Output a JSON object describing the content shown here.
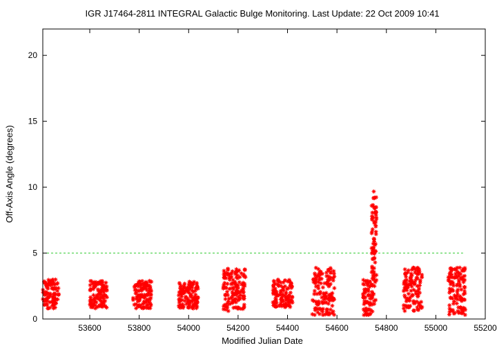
{
  "chart_data": {
    "type": "scatter",
    "title": "IGR J17464-2811   INTEGRAL Galactic Bulge Monitoring.  Last Update: 22 Oct 2009 10:41",
    "xlabel": "Modified Julian Date",
    "ylabel": "Off-Axis Angle (degrees)",
    "xlim": [
      53410,
      55200
    ],
    "ylim": [
      0,
      22
    ],
    "xticks": [
      53600,
      53800,
      54000,
      54200,
      54400,
      54600,
      54800,
      55000,
      55200
    ],
    "yticks": [
      0,
      5,
      10,
      15,
      20
    ],
    "grid": false,
    "marker": "star",
    "colors": {
      "points": "#ff0000",
      "reference_line": "#33cc33",
      "frame": "#000000"
    },
    "reference_line": {
      "y": 5,
      "x_range": [
        53410,
        55110
      ],
      "style": "dashed"
    },
    "clusters": [
      {
        "x_range": [
          53410,
          53475
        ],
        "y_range": [
          0.8,
          3.0
        ]
      },
      {
        "x_range": [
          53600,
          53670
        ],
        "y_range": [
          0.8,
          2.9
        ]
      },
      {
        "x_range": [
          53775,
          53850
        ],
        "y_range": [
          0.8,
          2.9
        ]
      },
      {
        "x_range": [
          53960,
          54040
        ],
        "y_range": [
          0.8,
          2.9
        ]
      },
      {
        "x_range": [
          54140,
          54230
        ],
        "y_range": [
          0.6,
          3.9
        ]
      },
      {
        "x_range": [
          54340,
          54420
        ],
        "y_range": [
          0.9,
          3.0
        ]
      },
      {
        "x_range": [
          54500,
          54590
        ],
        "y_range": [
          0.3,
          3.9
        ]
      },
      {
        "x_range": [
          54705,
          54745
        ],
        "y_range": [
          0.3,
          3.0
        ]
      },
      {
        "x_range": [
          54740,
          54760
        ],
        "y_range": [
          1.0,
          9.7
        ]
      },
      {
        "x_range": [
          54870,
          54945
        ],
        "y_range": [
          0.6,
          3.9
        ]
      },
      {
        "x_range": [
          55050,
          55120
        ],
        "y_range": [
          0.3,
          3.9
        ]
      }
    ]
  }
}
